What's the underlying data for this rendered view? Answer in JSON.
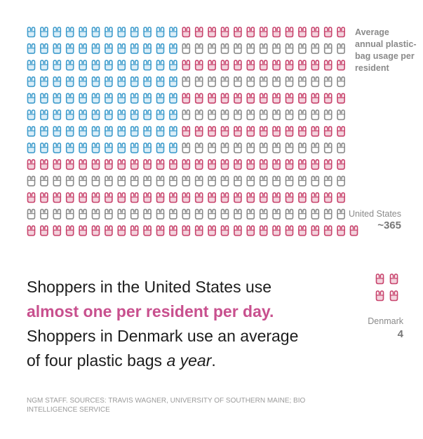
{
  "chart_data": {
    "type": "pictogram",
    "title": "Average annual plastic-bag usage per resident",
    "unit_icon": "plastic-bag-icon",
    "series": [
      {
        "name": "United States",
        "value_label": "~365",
        "value": 365
      },
      {
        "name": "Denmark",
        "value_label": "4",
        "value": 4
      }
    ]
  },
  "colors": {
    "blue": "#3f9ccc",
    "red": "#c8446d",
    "pink": "#d98aa4",
    "gray": "#8a8a8a",
    "highlight": "#c8508e"
  },
  "text": {
    "line1": "Shoppers in the United States use",
    "line2": "almost one per resident per day.",
    "line3": "Shoppers in Denmark use an average",
    "line4a": "of four plastic bags ",
    "line4b": "a year",
    "line4c": "."
  },
  "source": "NGM STAFF. SOURCES: TRAVIS WAGNER, UNIVERSITY OF SOUTHERN MAINE; BIO INTELLIGENCE SERVICE"
}
